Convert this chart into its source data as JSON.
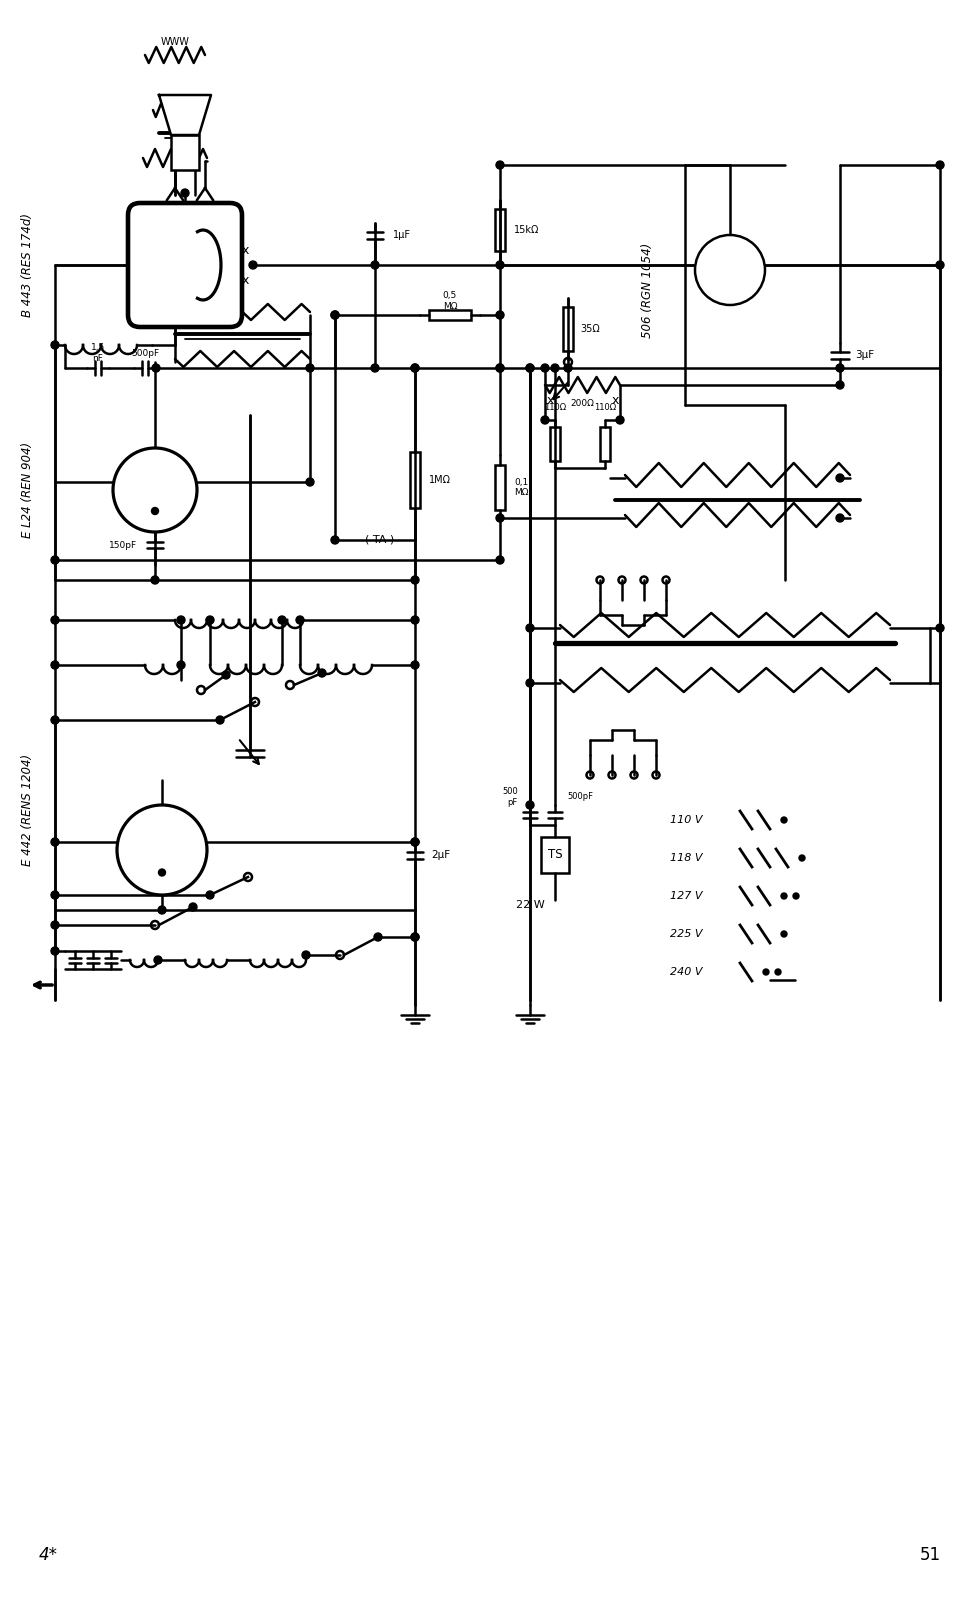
{
  "bg_color": "#ffffff",
  "line_color": "#000000",
  "page_left": "4*",
  "page_right": "51",
  "label_B443": "B 443 (RES 174d)",
  "label_EL424": "E L24 (REN 904)",
  "label_EL442": "E 442 (RENS 1204)",
  "label_506": "506 (RGN 1054)",
  "voltages": [
    "110 V",
    "118 V",
    "127 V",
    "225 V",
    "240 V"
  ]
}
